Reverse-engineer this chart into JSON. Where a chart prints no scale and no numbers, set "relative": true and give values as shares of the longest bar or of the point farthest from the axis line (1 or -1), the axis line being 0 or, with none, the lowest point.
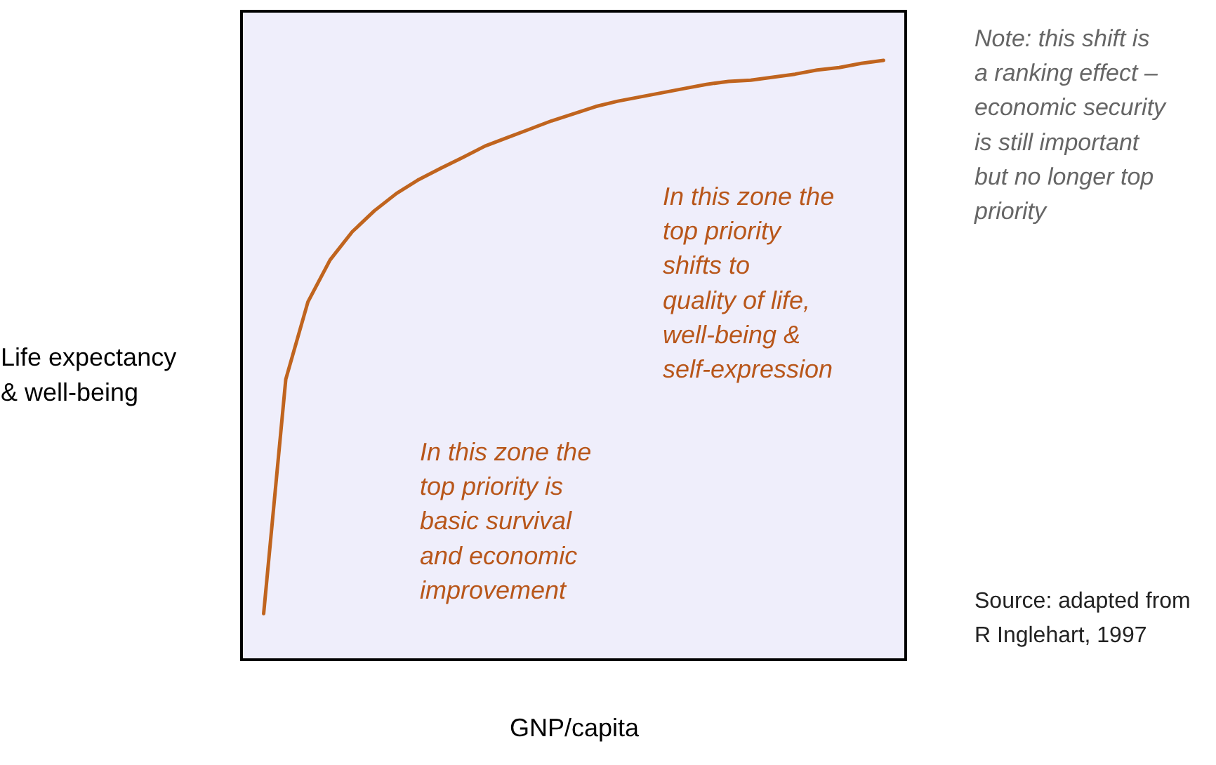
{
  "chart_data": {
    "type": "line",
    "relative": true,
    "xlabel": "GNP/capita",
    "ylabel": "Life expectancy\n& well-being",
    "tick_labels": false,
    "grid": false,
    "categories": [
      null,
      null,
      null,
      null,
      null,
      null,
      null,
      null,
      null,
      null,
      null,
      null,
      null,
      null,
      null,
      null,
      null,
      null,
      null,
      null,
      null,
      null,
      null,
      null,
      null,
      null,
      null,
      null,
      null
    ],
    "series": [
      {
        "color": "#c0641e",
        "values": [
          0.077,
          0.468,
          0.597,
          0.667,
          0.714,
          0.749,
          0.778,
          0.801,
          0.82,
          0.838,
          0.857,
          0.871,
          0.885,
          0.899,
          0.911,
          0.923,
          0.932,
          0.939,
          0.946,
          0.953,
          0.96,
          0.965,
          0.967,
          0.972,
          0.977,
          0.984,
          0.988,
          0.995,
          1
        ]
      }
    ],
    "annotations": [
      "In this zone the\ntop priority is\nbasic survival\nand economic\nimprovement",
      "In this zone the\ntop priority\nshifts to\nquality of life,\nwell-being &\nself-expression",
      "Note: this shift is\na ranking effect –\neconomic security\nis still important\nbut no longer top\npriority",
      "Source: adapted from\nR Inglehart, 1997"
    ]
  }
}
